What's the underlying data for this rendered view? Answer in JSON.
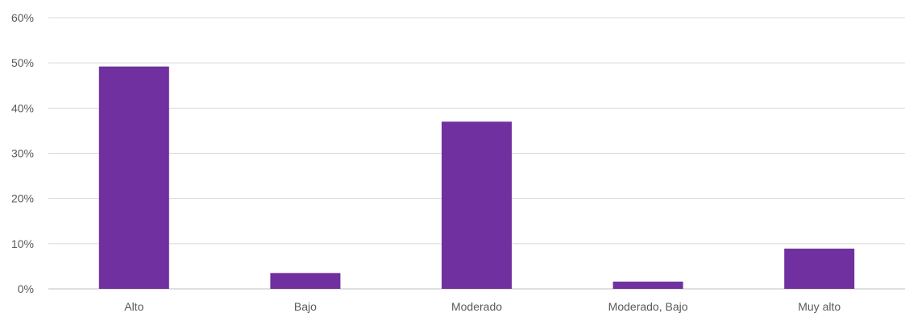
{
  "chart_data": {
    "type": "bar",
    "title": "",
    "xlabel": "",
    "ylabel": "",
    "categories": [
      "Alto",
      "Bajo",
      "Moderado",
      "Moderado, Bajo",
      "Muy alto"
    ],
    "values": [
      49.2,
      3.5,
      37.0,
      1.6,
      8.9
    ],
    "ylim": [
      0,
      60
    ],
    "yticks": [
      0,
      10,
      20,
      30,
      40,
      50,
      60
    ],
    "ytick_labels": [
      "0%",
      "10%",
      "20%",
      "30%",
      "40%",
      "50%",
      "60%"
    ],
    "grid": true,
    "legend": "none",
    "bar_color": "#7030a0"
  }
}
